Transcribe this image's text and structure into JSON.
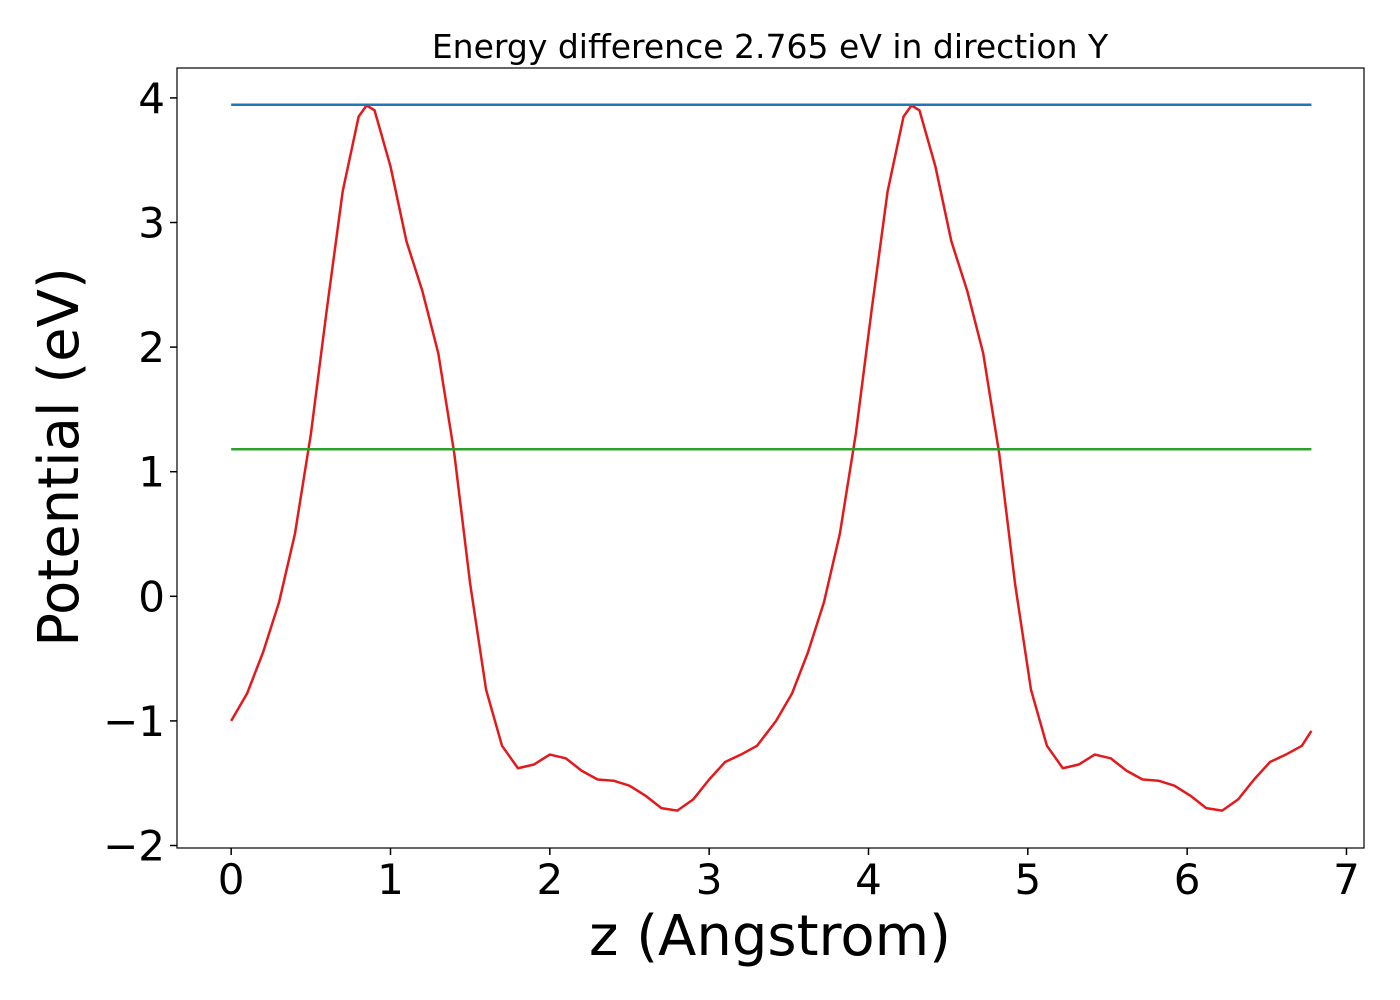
{
  "chart_data": {
    "type": "line",
    "title": "Energy difference 2.765 eV in direction Y",
    "xlabel": "z (Angstrom)",
    "ylabel": "Potential (eV)",
    "xlim": [
      -0.34,
      7.11
    ],
    "ylim": [
      -2.02,
      4.24
    ],
    "xticks": [
      0,
      1,
      2,
      3,
      4,
      5,
      6,
      7
    ],
    "yticks": [
      {
        "value": -2,
        "label": "−2"
      },
      {
        "value": -1,
        "label": "−1"
      },
      0,
      1,
      2,
      3,
      4
    ],
    "series": [
      {
        "color": "#e31a1c",
        "x": [
          0.0,
          0.1,
          0.2,
          0.3,
          0.4,
          0.5,
          0.6,
          0.7,
          0.8,
          0.85,
          0.9,
          1.0,
          1.1,
          1.2,
          1.3,
          1.4,
          1.5,
          1.6,
          1.7,
          1.8,
          1.9,
          2.0,
          2.1,
          2.2,
          2.3,
          2.4,
          2.5,
          2.6,
          2.7,
          2.8,
          2.9,
          3.0,
          3.1,
          3.2,
          3.3,
          3.42,
          3.52,
          3.62,
          3.72,
          3.82,
          3.92,
          4.02,
          4.12,
          4.22,
          4.27,
          4.32,
          4.42,
          4.52,
          4.62,
          4.72,
          4.82,
          4.92,
          5.02,
          5.12,
          5.22,
          5.32,
          5.42,
          5.52,
          5.62,
          5.72,
          5.82,
          5.92,
          6.02,
          6.12,
          6.22,
          6.32,
          6.42,
          6.52,
          6.62,
          6.72,
          6.78
        ],
        "values": [
          -1.0,
          -0.78,
          -0.45,
          -0.05,
          0.5,
          1.3,
          2.3,
          3.25,
          3.85,
          3.94,
          3.9,
          3.45,
          2.85,
          2.45,
          1.95,
          1.15,
          0.1,
          -0.75,
          -1.2,
          -1.38,
          -1.35,
          -1.27,
          -1.3,
          -1.4,
          -1.47,
          -1.48,
          -1.52,
          -1.6,
          -1.7,
          -1.72,
          -1.63,
          -1.47,
          -1.33,
          -1.27,
          -1.2,
          -1.0,
          -0.78,
          -0.45,
          -0.05,
          0.5,
          1.3,
          2.3,
          3.25,
          3.85,
          3.94,
          3.9,
          3.45,
          2.85,
          2.45,
          1.95,
          1.15,
          0.1,
          -0.75,
          -1.2,
          -1.38,
          -1.35,
          -1.27,
          -1.3,
          -1.4,
          -1.47,
          -1.48,
          -1.52,
          -1.6,
          -1.7,
          -1.72,
          -1.63,
          -1.47,
          -1.33,
          -1.27,
          -1.2,
          -1.08
        ]
      },
      {
        "color": "#1f77b4",
        "x": [
          0,
          6.78
        ],
        "values": [
          3.945,
          3.945
        ]
      },
      {
        "color": "#2ca02c",
        "x": [
          0,
          6.78
        ],
        "values": [
          1.18,
          1.18
        ]
      }
    ]
  }
}
